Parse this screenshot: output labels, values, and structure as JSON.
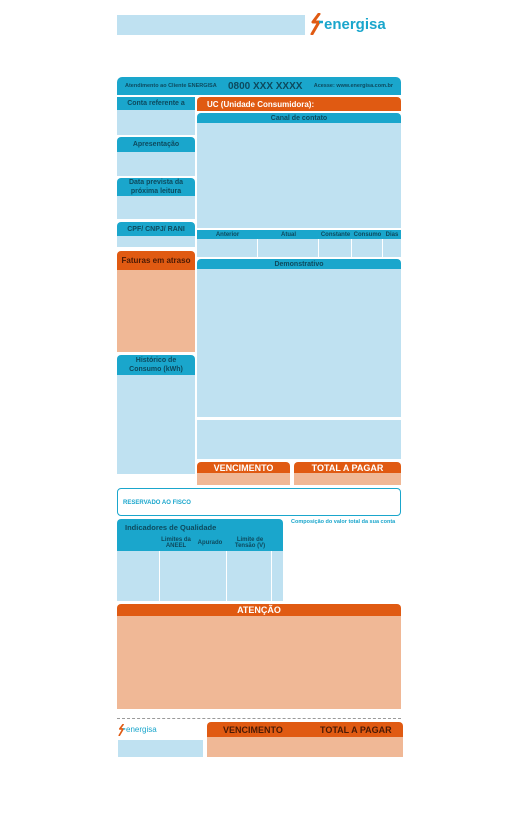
{
  "logo": {
    "text": "energisa"
  },
  "service_bar": {
    "label": "Atendimento ao Cliente ENERGISA",
    "phone": "0800 XXX XXXX",
    "site": "Acesse: www.energisa.com.br"
  },
  "left": {
    "conta_referente": "Conta referente a",
    "apresentacao": "Apresentação",
    "data_prevista": "Data prevista da próxima leitura",
    "cpf": "CPF/ CNPJ/ RANI",
    "faturas": "Faturas em atraso",
    "historico": "Histórico de Consumo (kWh)"
  },
  "uc": {
    "title": "UC (Unidade Consumidora):"
  },
  "canal": {
    "title": "Canal de contato"
  },
  "leitura": {
    "headers": [
      "Anterior",
      "Atual",
      "Constante",
      "Consumo",
      "Dias"
    ]
  },
  "demonstrativo": {
    "title": "Demonstrativo"
  },
  "pay": {
    "vencimento": "VENCIMENTO",
    "total": "TOTAL A PAGAR"
  },
  "fisco": {
    "title": "RESERVADO AO FISCO"
  },
  "composicao": {
    "title": "Composição do valor total da sua conta"
  },
  "indicadores": {
    "title": "Indicadores de Qualidade",
    "headers": [
      "",
      "Limites da ANEEL",
      "Apurado",
      "Limite de Tensão (V)",
      ""
    ]
  },
  "atencao": {
    "title": "ATENÇÃO"
  },
  "stub": {
    "logo": "energisa",
    "vencimento": "VENCIMENTO",
    "total": "TOTAL A PAGAR"
  },
  "colors": {
    "teal": "#1aa6cc",
    "light_blue": "#bfe1f1",
    "orange": "#e05a12",
    "peach": "#f0b896"
  }
}
